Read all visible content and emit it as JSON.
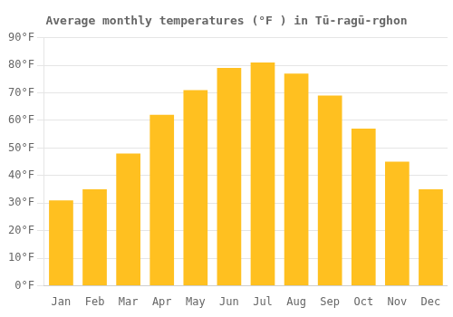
{
  "chart_data": {
    "type": "bar",
    "title": "Average monthly temperatures (°F ) in Tū-ragū-rghon",
    "categories": [
      "Jan",
      "Feb",
      "Mar",
      "Apr",
      "May",
      "Jun",
      "Jul",
      "Aug",
      "Sep",
      "Oct",
      "Nov",
      "Dec"
    ],
    "values": [
      31,
      35,
      48,
      62,
      71,
      79,
      81,
      77,
      69,
      57,
      45,
      35
    ],
    "color": "#FFC020",
    "ylim": [
      0,
      90
    ],
    "yticks": [
      {
        "value": 0,
        "label": "0°F"
      },
      {
        "value": 10,
        "label": "10°F"
      },
      {
        "value": 20,
        "label": "20°F"
      },
      {
        "value": 30,
        "label": "30°F"
      },
      {
        "value": 40,
        "label": "40°F"
      },
      {
        "value": 50,
        "label": "50°F"
      },
      {
        "value": 60,
        "label": "60°F"
      },
      {
        "value": 70,
        "label": "70°F"
      },
      {
        "value": 80,
        "label": "80°F"
      },
      {
        "value": 90,
        "label": "90°F"
      }
    ],
    "grid": true
  }
}
